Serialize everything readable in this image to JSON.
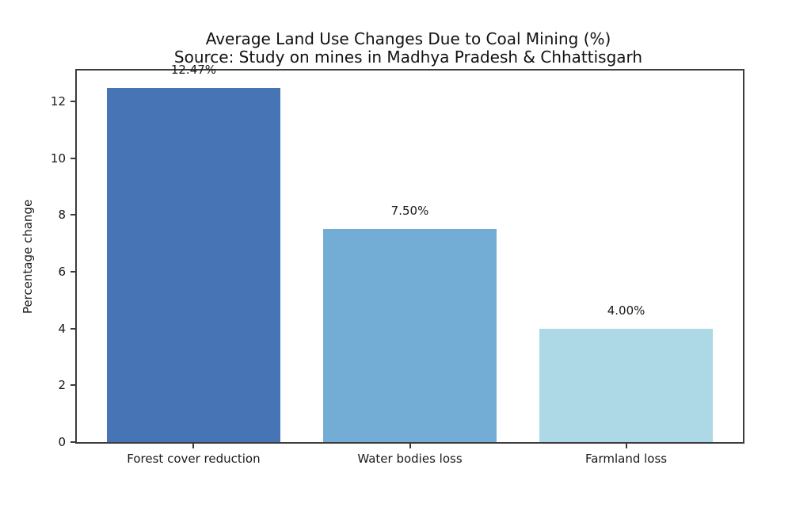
{
  "figure": {
    "title_line1": "Average Land Use Changes Due to Coal Mining (%)",
    "title_line2": "Source: Study on mines in Madhya Pradesh & Chhattisgarh"
  },
  "chart_data": {
    "type": "bar",
    "title": "Average Land Use Changes Due to Coal Mining (%)",
    "subtitle": "Source: Study on mines in Madhya Pradesh & Chhattisgarh",
    "categories": [
      "Forest cover reduction",
      "Water bodies loss",
      "Farmland loss"
    ],
    "values": [
      12.47,
      7.5,
      4.0
    ],
    "bar_labels": [
      "12.47%",
      "7.50%",
      "4.00%"
    ],
    "bar_colors": [
      "#4674b5",
      "#73add5",
      "#add8e6"
    ],
    "xlabel": "",
    "ylabel": "Percentage change",
    "ylim": [
      0,
      13.09
    ],
    "yticks": [
      0,
      2,
      4,
      6,
      8,
      10,
      12
    ],
    "bar_width_fraction": 0.8,
    "grid": false,
    "legend": null,
    "background": "#ffffff",
    "axis_color": "#3c3c3c",
    "text_color": "#1a1a1a"
  }
}
